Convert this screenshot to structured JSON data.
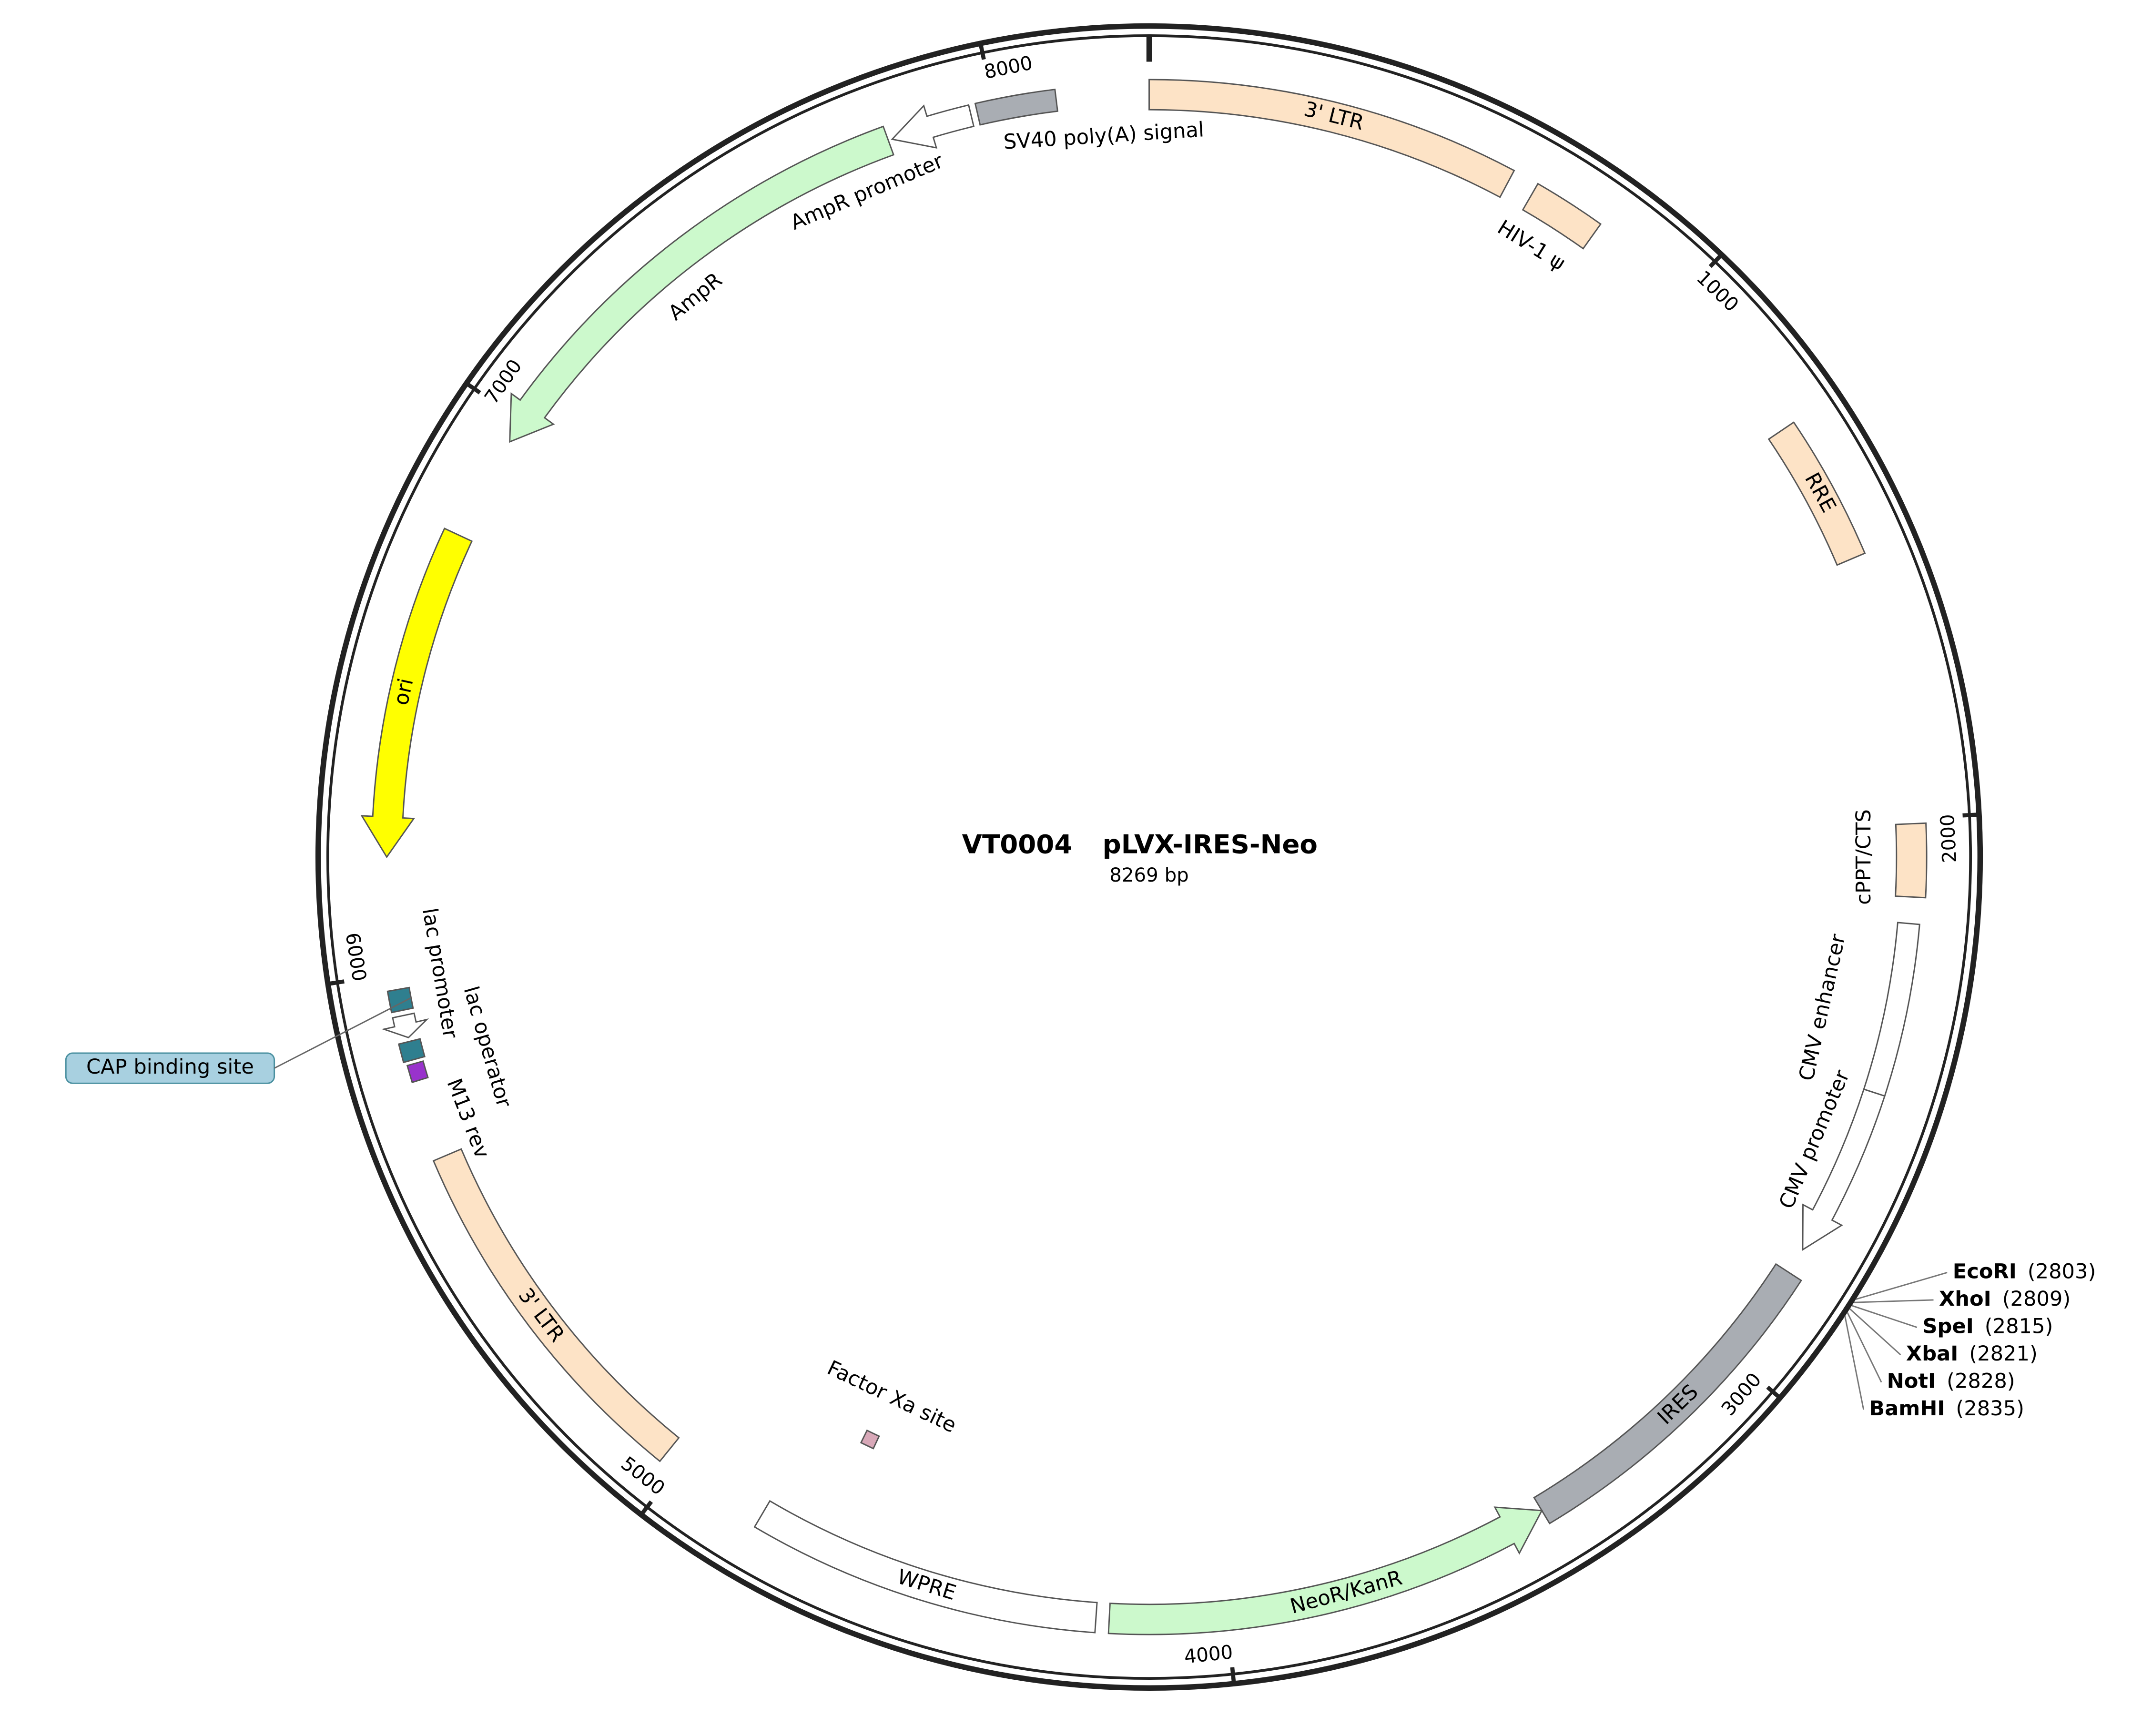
{
  "header": {
    "id": "VT0004",
    "name": "pLVX-IRES-Neo",
    "length": {
      "value": 8269,
      "label": "8269 bp"
    }
  },
  "ticks": [
    1000,
    2000,
    3000,
    4000,
    5000,
    6000,
    7000,
    8000
  ],
  "features": [
    {
      "label": "3' LTR",
      "color": "#fde3c6"
    },
    {
      "label": "HIV-1 ψ",
      "color": "#fde3c6"
    },
    {
      "label": "RRE",
      "color": "#fde3c6"
    },
    {
      "label": "cPPT/CTS",
      "color": "#fde3c6"
    },
    {
      "label": "CMV enhancer",
      "color": "#ffffff"
    },
    {
      "label": "CMV promoter",
      "color": "#ffffff"
    },
    {
      "label": "IRES",
      "color": "#a9adb3"
    },
    {
      "label": "NeoR/KanR",
      "color": "#ccf9cc"
    },
    {
      "label": "WPRE",
      "color": "#ffffff"
    },
    {
      "label": "Factor Xa site",
      "color": "#d8a8b8"
    },
    {
      "label": "3' LTR",
      "color": "#fde3c6"
    },
    {
      "label": "M13 rev",
      "color": "#9933cc"
    },
    {
      "label": "lac operator",
      "color": "#2f7f8f"
    },
    {
      "label": "lac promoter",
      "color": "#ffffff"
    },
    {
      "label": "CAP binding site",
      "color": "#2f7f8f"
    },
    {
      "label": "ori",
      "color": "#ffff00"
    },
    {
      "label": "AmpR",
      "color": "#ccf9cc"
    },
    {
      "label": "AmpR promoter",
      "color": "#ffffff"
    },
    {
      "label": "SV40 poly(A) signal",
      "color": "#a9adb3"
    }
  ],
  "sites": [
    {
      "name": "EcoRI",
      "position": {
        "value": 2803,
        "label": "(2803)"
      }
    },
    {
      "name": "XhoI",
      "position": {
        "value": 2809,
        "label": "(2809)"
      }
    },
    {
      "name": "SpeI",
      "position": {
        "value": 2815,
        "label": "(2815)"
      }
    },
    {
      "name": "XbaI",
      "position": {
        "value": 2821,
        "label": "(2821)"
      }
    },
    {
      "name": "NotI",
      "position": {
        "value": 2828,
        "label": "(2828)"
      }
    },
    {
      "name": "BamHI",
      "position": {
        "value": 2835,
        "label": "(2835)"
      }
    }
  ]
}
